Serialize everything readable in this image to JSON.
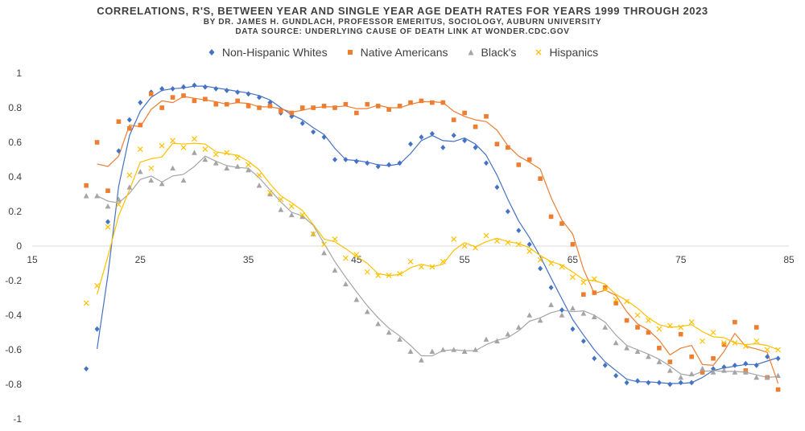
{
  "titles": {
    "line1": "CORRELATIONS,  R'S, BETWEEN YEAR AND SINGLE YEAR AGE DEATH RATES FOR YEARS 1999 THROUGH 2023",
    "line2": "BY DR. JAMES H. GUNDLACH,  PROFESSOR EMERITUS, SOCIOLOGY, AUBURN UNIVERSITY",
    "line3": "DATA SOURCE: UNDERLYING CAUSE OF DEATH LINK AT WONDER.CDC.GOV"
  },
  "chart_data": {
    "type": "scatter",
    "title": "CORRELATIONS,  R'S, BETWEEN YEAR AND SINGLE YEAR AGE DEATH RATES FOR YEARS 1999 THROUGH 2023",
    "xlabel": "",
    "ylabel": "",
    "xlim": [
      15,
      85
    ],
    "ylim": [
      -1,
      1
    ],
    "x_ticks": [
      15,
      25,
      35,
      45,
      55,
      65,
      75,
      85
    ],
    "y_ticks": [
      1,
      0.8,
      0.6,
      0.4,
      0.2,
      0,
      -0.2,
      -0.4,
      -0.6,
      -0.8,
      -1
    ],
    "y_tick_labels": [
      "1",
      "0.8",
      "0.6",
      "0.4",
      "0.2",
      "0",
      "-0.2",
      "-0.4",
      "-0.6",
      "-0.8",
      "-1"
    ],
    "grid": false,
    "legend_position": "top",
    "trendlines": "moving-average",
    "x": [
      20,
      21,
      22,
      23,
      24,
      25,
      26,
      27,
      28,
      29,
      30,
      31,
      32,
      33,
      34,
      35,
      36,
      37,
      38,
      39,
      40,
      41,
      42,
      43,
      44,
      45,
      46,
      47,
      48,
      49,
      50,
      51,
      52,
      53,
      54,
      55,
      56,
      57,
      58,
      59,
      60,
      61,
      62,
      63,
      64,
      65,
      66,
      67,
      68,
      69,
      70,
      71,
      72,
      73,
      74,
      75,
      76,
      77,
      78,
      79,
      80,
      81,
      82,
      83,
      84
    ],
    "series": [
      {
        "name": "Non-Hispanic Whites",
        "marker": "diamond",
        "color": "#4472C4",
        "values": [
          -0.71,
          -0.48,
          0.14,
          0.55,
          0.73,
          0.83,
          0.89,
          0.91,
          0.91,
          0.92,
          0.93,
          0.92,
          0.91,
          0.9,
          0.89,
          0.88,
          0.86,
          0.83,
          0.77,
          0.75,
          0.71,
          0.66,
          0.63,
          0.5,
          0.5,
          0.49,
          0.48,
          0.46,
          0.47,
          0.48,
          0.59,
          0.63,
          0.65,
          0.57,
          0.64,
          0.61,
          0.57,
          0.48,
          0.34,
          0.2,
          0.09,
          0.01,
          -0.13,
          -0.24,
          -0.37,
          -0.48,
          -0.55,
          -0.65,
          -0.69,
          -0.75,
          -0.79,
          -0.78,
          -0.79,
          -0.79,
          -0.8,
          -0.79,
          -0.79,
          -0.73,
          -0.71,
          -0.7,
          -0.69,
          -0.68,
          -0.69,
          -0.64,
          -0.65
        ]
      },
      {
        "name": "Native Americans",
        "marker": "square",
        "color": "#ED7D31",
        "values": [
          0.35,
          0.6,
          0.32,
          0.72,
          0.68,
          0.7,
          0.88,
          0.8,
          0.86,
          0.87,
          0.84,
          0.85,
          0.82,
          0.82,
          0.84,
          0.81,
          0.8,
          0.81,
          0.78,
          0.77,
          0.8,
          0.8,
          0.81,
          0.8,
          0.82,
          0.77,
          0.82,
          0.81,
          0.79,
          0.81,
          0.83,
          0.84,
          0.83,
          0.83,
          0.73,
          0.77,
          0.69,
          0.75,
          0.59,
          0.57,
          0.47,
          0.5,
          0.39,
          0.17,
          0.13,
          0.01,
          -0.28,
          -0.27,
          -0.24,
          -0.33,
          -0.43,
          -0.47,
          -0.5,
          -0.59,
          -0.67,
          -0.51,
          -0.64,
          -0.73,
          -0.65,
          -0.57,
          -0.44,
          -0.72,
          -0.47,
          -0.76,
          -0.83
        ]
      },
      {
        "name": "Black's",
        "marker": "triangle",
        "color": "#A5A5A5",
        "values": [
          0.29,
          0.29,
          0.23,
          0.27,
          0.34,
          0.43,
          0.38,
          0.36,
          0.45,
          0.38,
          0.54,
          0.5,
          0.48,
          0.45,
          0.46,
          0.44,
          0.35,
          0.3,
          0.21,
          0.18,
          0.17,
          0.07,
          -0.04,
          -0.14,
          -0.22,
          -0.31,
          -0.38,
          -0.45,
          -0.5,
          -0.54,
          -0.61,
          -0.66,
          -0.61,
          -0.6,
          -0.6,
          -0.61,
          -0.6,
          -0.54,
          -0.55,
          -0.51,
          -0.47,
          -0.4,
          -0.43,
          -0.34,
          -0.4,
          -0.36,
          -0.39,
          -0.41,
          -0.47,
          -0.56,
          -0.59,
          -0.61,
          -0.64,
          -0.67,
          -0.72,
          -0.76,
          -0.74,
          -0.71,
          -0.73,
          -0.72,
          -0.73,
          -0.73,
          -0.76,
          -0.76,
          -0.75
        ]
      },
      {
        "name": "Hispanics",
        "marker": "x",
        "color": "#FFC000",
        "values": [
          -0.33,
          -0.23,
          0.11,
          0.24,
          0.41,
          0.56,
          0.45,
          0.58,
          0.61,
          0.57,
          0.62,
          0.56,
          0.53,
          0.54,
          0.51,
          0.47,
          0.41,
          0.31,
          0.27,
          0.23,
          0.18,
          0.07,
          0.01,
          0.04,
          -0.07,
          -0.05,
          -0.15,
          -0.17,
          -0.17,
          -0.16,
          -0.09,
          -0.12,
          -0.12,
          -0.09,
          0.04,
          0.0,
          -0.01,
          0.06,
          0.03,
          0.02,
          0.01,
          -0.03,
          -0.08,
          -0.1,
          -0.12,
          -0.18,
          -0.21,
          -0.19,
          -0.25,
          -0.31,
          -0.32,
          -0.4,
          -0.43,
          -0.48,
          -0.46,
          -0.47,
          -0.44,
          -0.55,
          -0.5,
          -0.56,
          -0.56,
          -0.58,
          -0.55,
          -0.6,
          -0.6
        ]
      }
    ]
  }
}
